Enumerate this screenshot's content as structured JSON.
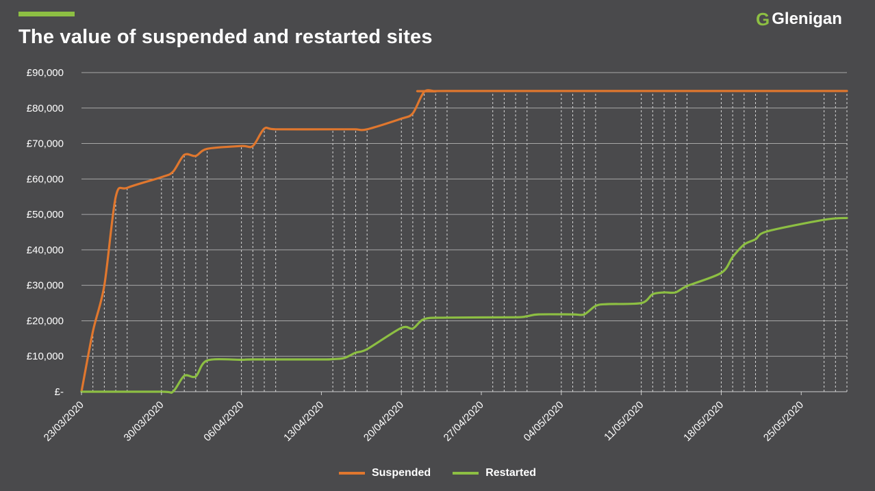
{
  "header": {
    "title": "The value of suspended and restarted sites",
    "logo_mark": "G",
    "logo_text": "Glenigan"
  },
  "colors": {
    "background": "#4a4a4c",
    "accent": "#8dbf43",
    "suspended": "#e0772e",
    "restarted": "#8dbf43",
    "grid": "#a8a8a8",
    "dashed": "#d8d8d8"
  },
  "chart_data": {
    "type": "line",
    "title": "The value of suspended and restarted sites",
    "xlabel": "",
    "ylabel": "",
    "ylim": [
      0,
      90000
    ],
    "y_ticks": [
      {
        "value": 0,
        "label": "£-"
      },
      {
        "value": 10000,
        "label": "£10,000"
      },
      {
        "value": 20000,
        "label": "£20,000"
      },
      {
        "value": 30000,
        "label": "£30,000"
      },
      {
        "value": 40000,
        "label": "£40,000"
      },
      {
        "value": 50000,
        "label": "£50,000"
      },
      {
        "value": 60000,
        "label": "£60,000"
      },
      {
        "value": 70000,
        "label": "£70,000"
      },
      {
        "value": 80000,
        "label": "£80,000"
      },
      {
        "value": 90000,
        "label": "£90,000"
      }
    ],
    "x_range": [
      "2020-03-23",
      "2020-05-29"
    ],
    "x_tick_labels": [
      "23/03/2020",
      "30/03/2020",
      "06/04/2020",
      "13/04/2020",
      "20/04/2020",
      "27/04/2020",
      "04/05/2020",
      "11/05/2020",
      "18/05/2020",
      "25/05/2020"
    ],
    "x_ticks": [
      "2020-03-23",
      "2020-03-30",
      "2020-04-06",
      "2020-04-13",
      "2020-04-20",
      "2020-04-27",
      "2020-05-04",
      "2020-05-11",
      "2020-05-18",
      "2020-05-25"
    ],
    "grid": "horizontal",
    "legend_position": "bottom-center",
    "dates": [
      "2020-03-23",
      "2020-03-24",
      "2020-03-25",
      "2020-03-26",
      "2020-03-27",
      "2020-03-30",
      "2020-03-31",
      "2020-04-01",
      "2020-04-02",
      "2020-04-03",
      "2020-04-06",
      "2020-04-07",
      "2020-04-08",
      "2020-04-09",
      "2020-04-14",
      "2020-04-15",
      "2020-04-16",
      "2020-04-17",
      "2020-04-20",
      "2020-04-21",
      "2020-04-22",
      "2020-04-23",
      "2020-04-24",
      "2020-04-28",
      "2020-04-29",
      "2020-04-30",
      "2020-05-01",
      "2020-05-04",
      "2020-05-05",
      "2020-05-06",
      "2020-05-07",
      "2020-05-11",
      "2020-05-12",
      "2020-05-13",
      "2020-05-14",
      "2020-05-15",
      "2020-05-18",
      "2020-05-19",
      "2020-05-20",
      "2020-05-21",
      "2020-05-22",
      "2020-05-27",
      "2020-05-28",
      "2020-05-29"
    ],
    "series": [
      {
        "name": "Suspended",
        "color": "#e0772e",
        "points": [
          [
            "2020-03-23",
            0
          ],
          [
            "2020-03-24",
            17000
          ],
          [
            "2020-03-25",
            30000
          ],
          [
            "2020-03-26",
            55000
          ],
          [
            "2020-03-27",
            57500
          ],
          [
            "2020-03-30",
            60500
          ],
          [
            "2020-03-31",
            62000
          ],
          [
            "2020-04-01",
            66800
          ],
          [
            "2020-04-02",
            66500
          ],
          [
            "2020-04-03",
            68500
          ],
          [
            "2020-04-06",
            69300
          ],
          [
            "2020-04-07",
            69300
          ],
          [
            "2020-04-08",
            74200
          ],
          [
            "2020-04-09",
            74000
          ],
          [
            "2020-04-14",
            74000
          ],
          [
            "2020-04-15",
            74000
          ],
          [
            "2020-04-16",
            74000
          ],
          [
            "2020-04-17",
            74000
          ],
          [
            "2020-04-20",
            77000
          ],
          [
            "2020-04-21",
            78500
          ],
          [
            "2020-04-22",
            84600
          ],
          [
            "2020-04-23",
            84700
          ],
          [
            "2020-04-24",
            84800
          ],
          [
            "2020-05-29",
            84800
          ]
        ]
      },
      {
        "name": "Restarted",
        "color": "#8dbf43",
        "points": [
          [
            "2020-03-23",
            0
          ],
          [
            "2020-03-30",
            0
          ],
          [
            "2020-03-31",
            0
          ],
          [
            "2020-04-01",
            4500
          ],
          [
            "2020-04-02",
            4300
          ],
          [
            "2020-04-03",
            8800
          ],
          [
            "2020-04-06",
            9000
          ],
          [
            "2020-04-07",
            9100
          ],
          [
            "2020-04-13",
            9100
          ],
          [
            "2020-04-14",
            9200
          ],
          [
            "2020-04-15",
            9500
          ],
          [
            "2020-04-16",
            11000
          ],
          [
            "2020-04-17",
            12000
          ],
          [
            "2020-04-20",
            18000
          ],
          [
            "2020-04-21",
            17800
          ],
          [
            "2020-04-22",
            20500
          ],
          [
            "2020-04-24",
            20900
          ],
          [
            "2020-04-30",
            21000
          ],
          [
            "2020-05-01",
            21300
          ],
          [
            "2020-05-02",
            21800
          ],
          [
            "2020-05-05",
            21800
          ],
          [
            "2020-05-06",
            21800
          ],
          [
            "2020-05-07",
            24200
          ],
          [
            "2020-05-08",
            24700
          ],
          [
            "2020-05-11",
            25000
          ],
          [
            "2020-05-12",
            27500
          ],
          [
            "2020-05-13",
            28000
          ],
          [
            "2020-05-14",
            28000
          ],
          [
            "2020-05-15",
            29800
          ],
          [
            "2020-05-18",
            33500
          ],
          [
            "2020-05-19",
            38000
          ],
          [
            "2020-05-20",
            41500
          ],
          [
            "2020-05-21",
            43000
          ],
          [
            "2020-05-22",
            45200
          ],
          [
            "2020-05-27",
            48500
          ],
          [
            "2020-05-29",
            49000
          ]
        ]
      }
    ]
  },
  "legend": {
    "suspended_label": "Suspended",
    "restarted_label": "Restarted"
  }
}
